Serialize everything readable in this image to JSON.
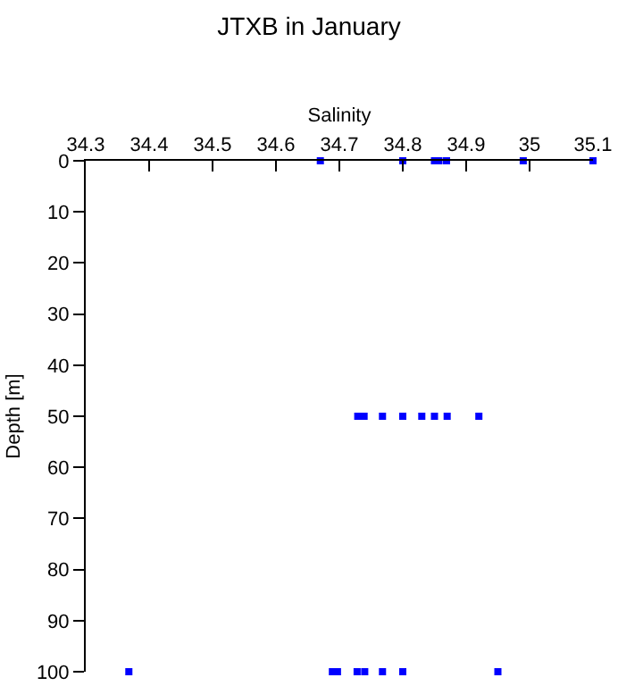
{
  "chart_data": {
    "type": "scatter",
    "title": "JTXB in January",
    "xlabel": "Salinity",
    "ylabel": "Depth [m]",
    "x": [
      34.67,
      34.8,
      34.85,
      34.857,
      34.869,
      34.99,
      35.1,
      34.729,
      34.739,
      34.768,
      34.8,
      34.83,
      34.85,
      34.87,
      34.92,
      34.368,
      34.689,
      34.697,
      34.728,
      34.74,
      34.768,
      34.8,
      34.95
    ],
    "values": [
      0,
      0,
      0,
      0,
      0,
      0,
      0,
      50,
      50,
      50,
      50,
      50,
      50,
      50,
      50,
      100,
      100,
      100,
      100,
      100,
      100,
      100,
      100
    ],
    "color": "#0000ff",
    "marker": "square",
    "xlim": [
      34.3,
      35.1
    ],
    "xticks": [
      34.3,
      34.4,
      34.5,
      34.6,
      34.7,
      34.8,
      34.9,
      35,
      35.1
    ],
    "ylim": [
      100,
      0
    ],
    "yticks": [
      0,
      10,
      20,
      30,
      40,
      50,
      60,
      70,
      80,
      90,
      100
    ]
  }
}
